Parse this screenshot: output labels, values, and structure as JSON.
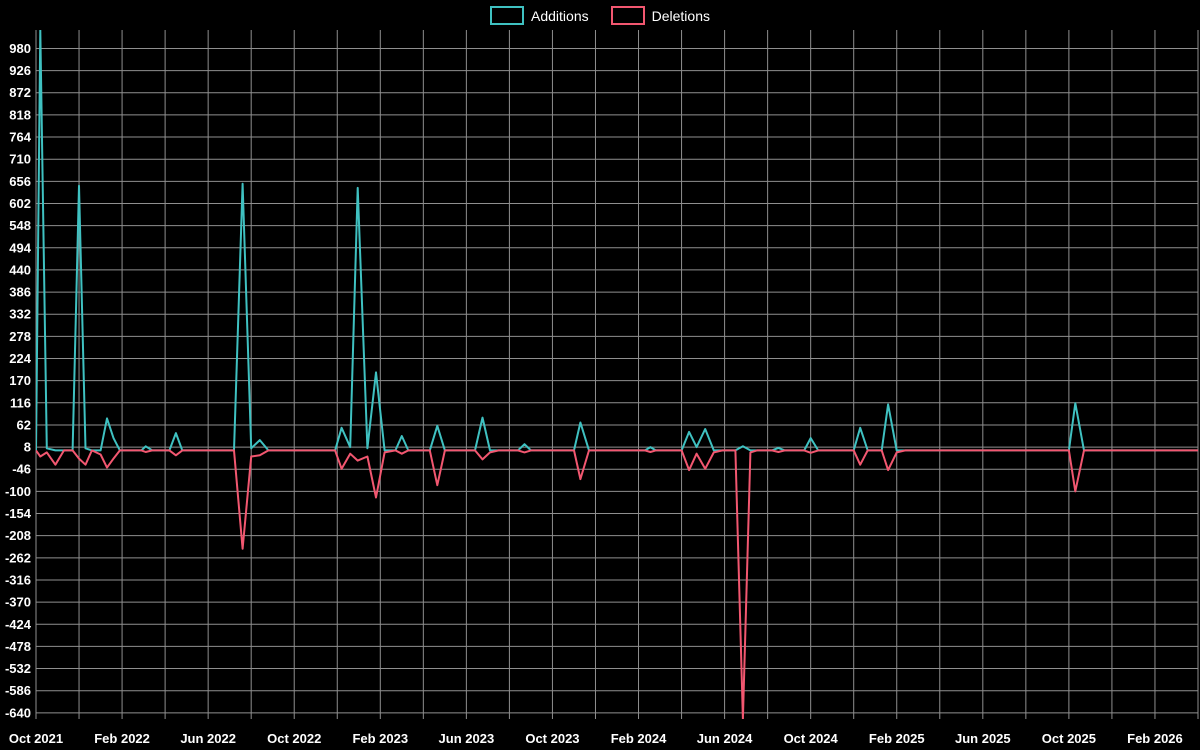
{
  "chart_data": {
    "type": "line",
    "title": "",
    "background": "#000000",
    "grid": true,
    "grid_color": "#8f8f8f",
    "text_color": "#ffffff",
    "legend_position": "top-center",
    "x_axis": {
      "unit": "months since Oct 2021",
      "min": 0,
      "max": 54,
      "gridline_step_months": 2,
      "tick_months": [
        0,
        4,
        8,
        12,
        16,
        20,
        24,
        28,
        32,
        36,
        40,
        44,
        48,
        52
      ],
      "tick_labels": [
        "Oct 2021",
        "Feb 2022",
        "Jun 2022",
        "Oct 2022",
        "Feb 2023",
        "Jun 2023",
        "Oct 2023",
        "Feb 2024",
        "Jun 2024",
        "Oct 2024",
        "Feb 2025",
        "Jun 2025",
        "Oct 2025",
        "Feb 2026"
      ]
    },
    "y_axis": {
      "min": -655,
      "max": 1025,
      "tick_step": 54,
      "tick_values": [
        980,
        926,
        872,
        818,
        764,
        710,
        656,
        602,
        548,
        494,
        440,
        386,
        332,
        278,
        224,
        170,
        116,
        62,
        8,
        -46,
        -100,
        -154,
        -208,
        -262,
        -316,
        -370,
        -424,
        -478,
        -532,
        -586,
        -640
      ]
    },
    "series": [
      {
        "name": "Additions",
        "color": "#3fc1c1"
      },
      {
        "name": "Deletions",
        "color": "#f25770"
      }
    ],
    "points_format": [
      "month_index",
      "additions",
      "deletions"
    ],
    "points": [
      [
        0.0,
        0,
        0
      ],
      [
        0.2,
        1025,
        -15
      ],
      [
        0.5,
        5,
        -5
      ],
      [
        0.9,
        0,
        -35
      ],
      [
        1.3,
        0,
        0
      ],
      [
        1.7,
        0,
        0
      ],
      [
        2.0,
        645,
        -20
      ],
      [
        2.3,
        5,
        -35
      ],
      [
        2.6,
        0,
        0
      ],
      [
        3.0,
        0,
        -10
      ],
      [
        3.3,
        78,
        -42
      ],
      [
        3.6,
        30,
        -20
      ],
      [
        3.9,
        0,
        0
      ],
      [
        4.9,
        0,
        0
      ],
      [
        5.1,
        10,
        -4
      ],
      [
        5.4,
        0,
        0
      ],
      [
        6.2,
        0,
        0
      ],
      [
        6.5,
        42,
        -12
      ],
      [
        6.8,
        0,
        0
      ],
      [
        9.2,
        0,
        0
      ],
      [
        9.6,
        650,
        -240
      ],
      [
        10.0,
        5,
        -15
      ],
      [
        10.4,
        25,
        -12
      ],
      [
        10.8,
        0,
        0
      ],
      [
        13.9,
        0,
        0
      ],
      [
        14.2,
        55,
        -45
      ],
      [
        14.6,
        8,
        -8
      ],
      [
        14.95,
        640,
        -25
      ],
      [
        15.4,
        5,
        -15
      ],
      [
        15.8,
        190,
        -115
      ],
      [
        16.2,
        0,
        -5
      ],
      [
        16.7,
        0,
        0
      ],
      [
        17.0,
        35,
        -8
      ],
      [
        17.3,
        0,
        0
      ],
      [
        18.3,
        0,
        0
      ],
      [
        18.65,
        60,
        -85
      ],
      [
        19.0,
        0,
        0
      ],
      [
        20.4,
        0,
        0
      ],
      [
        20.75,
        80,
        -22
      ],
      [
        21.1,
        0,
        -5
      ],
      [
        21.5,
        0,
        0
      ],
      [
        22.4,
        0,
        0
      ],
      [
        22.7,
        15,
        -5
      ],
      [
        23.0,
        0,
        0
      ],
      [
        25.0,
        0,
        0
      ],
      [
        25.3,
        68,
        -70
      ],
      [
        25.7,
        0,
        0
      ],
      [
        28.3,
        0,
        0
      ],
      [
        28.55,
        8,
        -4
      ],
      [
        28.8,
        0,
        0
      ],
      [
        30.0,
        0,
        0
      ],
      [
        30.35,
        45,
        -48
      ],
      [
        30.7,
        8,
        -8
      ],
      [
        31.1,
        52,
        -45
      ],
      [
        31.5,
        0,
        -5
      ],
      [
        31.9,
        0,
        0
      ],
      [
        32.5,
        0,
        0
      ],
      [
        32.85,
        10,
        -655
      ],
      [
        33.2,
        0,
        -5
      ],
      [
        33.5,
        0,
        0
      ],
      [
        34.2,
        0,
        0
      ],
      [
        34.5,
        6,
        -4
      ],
      [
        34.8,
        0,
        0
      ],
      [
        35.7,
        0,
        0
      ],
      [
        36.0,
        30,
        -6
      ],
      [
        36.35,
        0,
        0
      ],
      [
        38.0,
        0,
        0
      ],
      [
        38.3,
        55,
        -35
      ],
      [
        38.65,
        0,
        0
      ],
      [
        39.3,
        0,
        0
      ],
      [
        39.6,
        112,
        -48
      ],
      [
        40.0,
        0,
        -5
      ],
      [
        40.4,
        0,
        0
      ],
      [
        48.0,
        0,
        0
      ],
      [
        48.3,
        115,
        -100
      ],
      [
        48.7,
        0,
        0
      ],
      [
        54.0,
        0,
        0
      ]
    ]
  }
}
